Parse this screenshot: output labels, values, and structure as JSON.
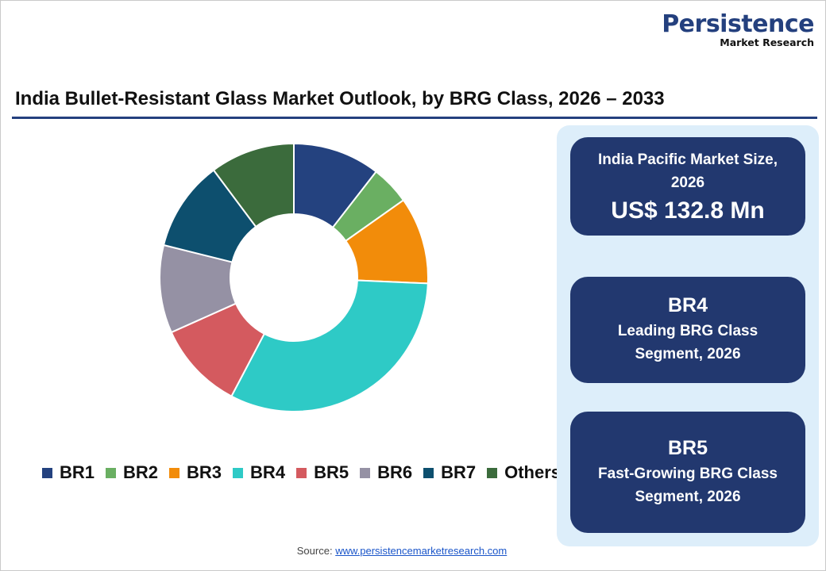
{
  "logo": {
    "line1": "Persistence",
    "line2": "Market Research"
  },
  "title": "India Bullet-Resistant Glass Market Outlook, by BRG Class, 2026 – 2033",
  "cards": [
    {
      "label": "India Pacific Market Size, 2026",
      "value": "US$ 132.8 Mn"
    },
    {
      "value": "BR4",
      "label": "Leading BRG Class Segment, 2026"
    },
    {
      "value": "BR5",
      "label": "Fast-Growing BRG Class Segment, 2026"
    }
  ],
  "source": {
    "prefix": "Source:",
    "link": "www.persistencemarketresearch.com"
  },
  "chart_data": {
    "type": "pie",
    "donut": true,
    "categories": [
      "BR1",
      "BR2",
      "BR3",
      "BR4",
      "BR5",
      "BR6",
      "BR7",
      "Others"
    ],
    "values": [
      10.5,
      4.7,
      10.5,
      32.0,
      10.6,
      10.6,
      10.9,
      10.2
    ],
    "colors": [
      "#24427f",
      "#6aaf62",
      "#f28c0a",
      "#2ecac6",
      "#d45a5f",
      "#9591a4",
      "#0d4f6e",
      "#3b6b3c"
    ],
    "legend_position": "bottom"
  }
}
